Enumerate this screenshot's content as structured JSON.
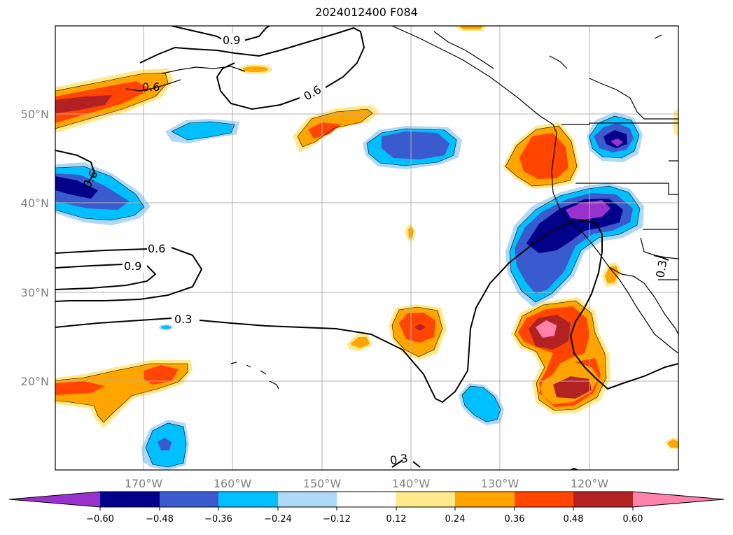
{
  "title": "2024012400 F084",
  "axes": {
    "lon_ticks": [
      "170°W",
      "160°W",
      "150°W",
      "140°W",
      "130°W",
      "120°W"
    ],
    "lat_ticks": [
      "50°N",
      "40°N",
      "30°N",
      "20°N"
    ]
  },
  "contour_labels": [
    "0.9",
    "0.6",
    "0.6",
    "0.6",
    "0.6",
    "0.9",
    "0.3",
    "0.3",
    "0.3"
  ],
  "colorbar": {
    "tick_labels": [
      "−0.60",
      "−0.48",
      "−0.36",
      "−0.24",
      "−0.12",
      "0.12",
      "0.24",
      "0.36",
      "0.48",
      "0.60"
    ],
    "colors": [
      "#9932cc",
      "#00008b",
      "#3a5bcd",
      "#00bfff",
      "#add8f6",
      "#ffffff",
      "#ffe98a",
      "#ffa500",
      "#ff4500",
      "#b22222",
      "#ff82ab"
    ]
  }
}
